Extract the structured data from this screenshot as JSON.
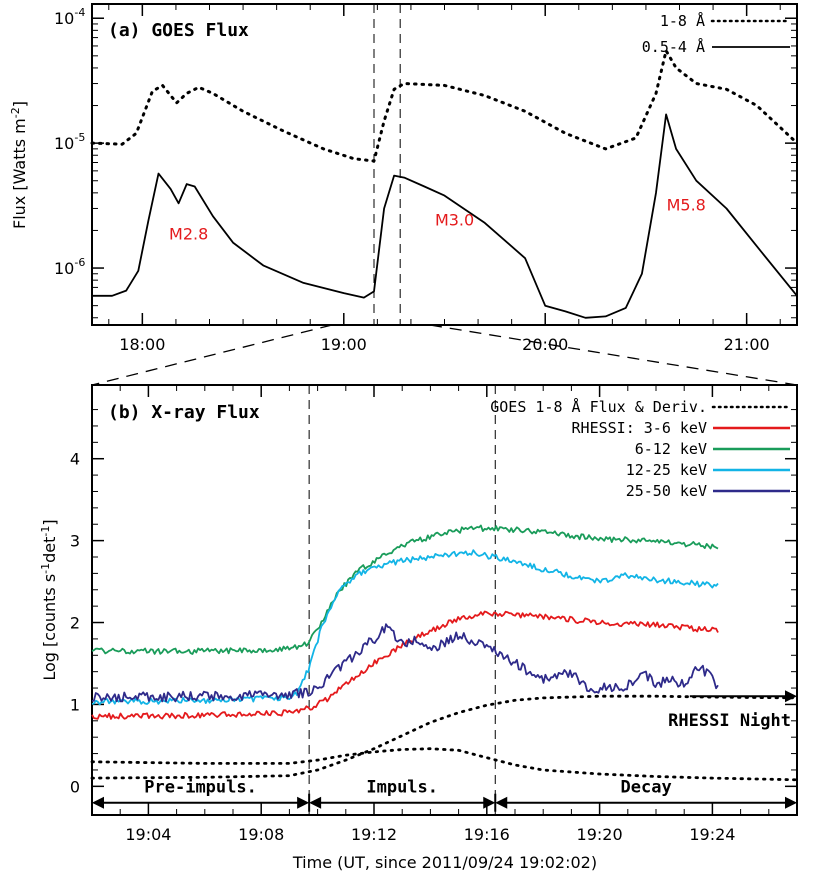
{
  "chart_data": [
    {
      "type": "line",
      "panel_label": "(a) GOES Flux",
      "ylabel": "Flux [Watts m",
      "ylabel_sup": "-2",
      "ylabel_tail": "]",
      "yscale": "log",
      "xlim": [
        17.75,
        21.25
      ],
      "ylim": [
        3.5e-07,
        0.00013
      ],
      "x_ticks": [
        {
          "x": 18.0,
          "label": "18:00"
        },
        {
          "x": 19.0,
          "label": "19:00"
        },
        {
          "x": 20.0,
          "label": "20:00"
        },
        {
          "x": 21.0,
          "label": "21:00"
        }
      ],
      "y_ticks": [
        {
          "y": 1e-06,
          "base": "10",
          "exp": "-6"
        },
        {
          "y": 1e-05,
          "base": "10",
          "exp": "-5"
        },
        {
          "y": 0.0001,
          "base": "10",
          "exp": "-4"
        }
      ],
      "vlines": [
        19.15,
        19.28
      ],
      "series": [
        {
          "name": "1-8 Å",
          "style": "dotted",
          "x": [
            17.75,
            17.9,
            17.97,
            18.05,
            18.1,
            18.17,
            18.22,
            18.28,
            18.35,
            18.5,
            18.7,
            18.9,
            19.05,
            19.15,
            19.2,
            19.25,
            19.3,
            19.5,
            19.7,
            19.9,
            20.1,
            20.3,
            20.45,
            20.55,
            20.6,
            20.65,
            20.75,
            20.9,
            21.05,
            21.25
          ],
          "y": [
            1e-05,
            9.8e-06,
            1.2e-05,
            2.6e-05,
            2.9e-05,
            2.1e-05,
            2.5e-05,
            2.8e-05,
            2.5e-05,
            1.8e-05,
            1.25e-05,
            9e-06,
            7.5e-06,
            7.2e-06,
            1.5e-05,
            2.7e-05,
            3e-05,
            2.9e-05,
            2.4e-05,
            1.8e-05,
            1.2e-05,
            9e-06,
            1.1e-05,
            2.5e-05,
            5.5e-05,
            4e-05,
            3e-05,
            2.7e-05,
            2e-05,
            1e-05
          ]
        },
        {
          "name": "0.5-4 Å",
          "style": "solid",
          "x": [
            17.75,
            17.85,
            17.92,
            17.98,
            18.03,
            18.08,
            18.14,
            18.18,
            18.22,
            18.26,
            18.35,
            18.45,
            18.6,
            18.8,
            19.0,
            19.1,
            19.15,
            19.2,
            19.25,
            19.3,
            19.4,
            19.5,
            19.7,
            19.9,
            20.0,
            20.1,
            20.2,
            20.3,
            20.4,
            20.48,
            20.55,
            20.6,
            20.65,
            20.75,
            20.9,
            21.05,
            21.25
          ],
          "y": [
            6e-07,
            6e-07,
            6.6e-07,
            9.5e-07,
            2.4e-06,
            5.7e-06,
            4.3e-06,
            3.3e-06,
            4.7e-06,
            4.5e-06,
            2.6e-06,
            1.6e-06,
            1.05e-06,
            7.6e-07,
            6.3e-07,
            5.8e-07,
            6.5e-07,
            3e-06,
            5.5e-06,
            5.3e-06,
            4.5e-06,
            3.8e-06,
            2.3e-06,
            1.2e-06,
            5e-07,
            4.5e-07,
            4e-07,
            4.1e-07,
            4.8e-07,
            9e-07,
            4e-06,
            1.7e-05,
            9e-06,
            5e-06,
            3e-06,
            1.5e-06,
            6e-07
          ]
        }
      ],
      "annotations": [
        {
          "label": "M2.8",
          "x": 18.23,
          "y": 1.7e-06
        },
        {
          "label": "M3.0",
          "x": 19.55,
          "y": 2.2e-06
        },
        {
          "label": "M5.8",
          "x": 20.7,
          "y": 2.9e-06
        }
      ]
    },
    {
      "type": "line",
      "panel_label": "(b) X-ray Flux",
      "ylabel": "Log [counts s",
      "ylabel_sup1": "-1",
      "ylabel_mid": "det",
      "ylabel_sup2": "-1",
      "ylabel_tail": "]",
      "xlabel": "Time (UT, since 2011/09/24 19:02:02)",
      "xlim": [
        0,
        25
      ],
      "ylim": [
        -0.35,
        4.9
      ],
      "x_ticks": [
        {
          "x": 2,
          "label": "19:04"
        },
        {
          "x": 6,
          "label": "19:08"
        },
        {
          "x": 10,
          "label": "19:12"
        },
        {
          "x": 14,
          "label": "19:16"
        },
        {
          "x": 18,
          "label": "19:20"
        },
        {
          "x": 22,
          "label": "19:24"
        }
      ],
      "y_ticks": [
        0,
        1,
        2,
        3,
        4
      ],
      "vlines": [
        7.7,
        14.3
      ],
      "legend_title": "GOES 1-8 Å Flux & Deriv.",
      "legend_prefix": "RHESSI:",
      "series": [
        {
          "name": "3-6 keV",
          "color": "#e41a1c",
          "x": [
            0,
            4,
            7,
            7.7,
            8.5,
            9,
            10,
            11,
            12,
            13,
            14,
            15,
            16,
            18,
            20,
            22.2
          ],
          "y": [
            0.85,
            0.87,
            0.9,
            0.95,
            1.1,
            1.25,
            1.5,
            1.72,
            1.9,
            2.05,
            2.12,
            2.1,
            2.07,
            2.0,
            1.97,
            1.9
          ]
        },
        {
          "name": "6-12 keV",
          "color": "#1a9c5a",
          "x": [
            0,
            4,
            7,
            7.7,
            8.2,
            8.8,
            9.5,
            10.5,
            11.5,
            12.5,
            13.5,
            14.5,
            16,
            18,
            20,
            22.2
          ],
          "y": [
            1.65,
            1.65,
            1.68,
            1.75,
            2.05,
            2.4,
            2.65,
            2.85,
            3.0,
            3.1,
            3.15,
            3.15,
            3.1,
            3.02,
            3.0,
            2.92
          ]
        },
        {
          "name": "12-25 keV",
          "color": "#12b4e6",
          "x": [
            0,
            4,
            7,
            7.3,
            7.7,
            8.2,
            8.8,
            9.5,
            10.5,
            11.5,
            12.5,
            13.5,
            14.5,
            16,
            18,
            19,
            20,
            22.2
          ],
          "y": [
            1.03,
            1.05,
            1.08,
            1.15,
            1.45,
            2.0,
            2.4,
            2.6,
            2.72,
            2.78,
            2.82,
            2.85,
            2.78,
            2.65,
            2.5,
            2.58,
            2.52,
            2.45
          ]
        },
        {
          "name": "25-50 keV",
          "color": "#2e2a8a",
          "x": [
            0,
            4,
            7,
            7.7,
            8.5,
            9.3,
            10.0,
            10.5,
            11,
            11.5,
            12,
            12.5,
            13,
            13.5,
            14,
            14.5,
            15,
            16,
            17,
            17.5,
            18,
            19,
            19.5,
            20,
            20.5,
            21,
            21.5,
            22,
            22.2
          ],
          "y": [
            1.08,
            1.1,
            1.12,
            1.15,
            1.35,
            1.6,
            1.8,
            1.95,
            1.72,
            1.8,
            1.65,
            1.75,
            1.85,
            1.75,
            1.72,
            1.6,
            1.5,
            1.3,
            1.4,
            1.2,
            1.2,
            1.22,
            1.42,
            1.25,
            1.3,
            1.25,
            1.45,
            1.35,
            1.2
          ]
        },
        {
          "name": "GOES 1-8 Å flux",
          "style": "dotted",
          "x": [
            0,
            4,
            7,
            8,
            9,
            10,
            11,
            12,
            13,
            14,
            15,
            16,
            18,
            20,
            22,
            25
          ],
          "y": [
            0.1,
            0.11,
            0.13,
            0.2,
            0.32,
            0.46,
            0.62,
            0.78,
            0.9,
            0.99,
            1.05,
            1.08,
            1.1,
            1.1,
            1.09,
            1.08
          ]
        },
        {
          "name": "GOES 1-8 Å derivative",
          "style": "dotted",
          "x": [
            0,
            4,
            7,
            8,
            9,
            10,
            11,
            12,
            13,
            14,
            15,
            16,
            18,
            20,
            22,
            25
          ],
          "y": [
            0.3,
            0.28,
            0.28,
            0.32,
            0.38,
            0.42,
            0.45,
            0.46,
            0.44,
            0.35,
            0.26,
            0.2,
            0.15,
            0.12,
            0.1,
            0.08
          ]
        }
      ],
      "phases": [
        {
          "label": "Pre-impuls.",
          "start": 0,
          "end": 7.7
        },
        {
          "label": "Impuls.",
          "start": 7.7,
          "end": 14.3
        },
        {
          "label": "Decay",
          "start": 14.3,
          "end": 25
        }
      ],
      "night_label": "RHESSI Night",
      "night_arrow": {
        "start": 21.2,
        "end": 25,
        "y": 1.1
      }
    }
  ]
}
